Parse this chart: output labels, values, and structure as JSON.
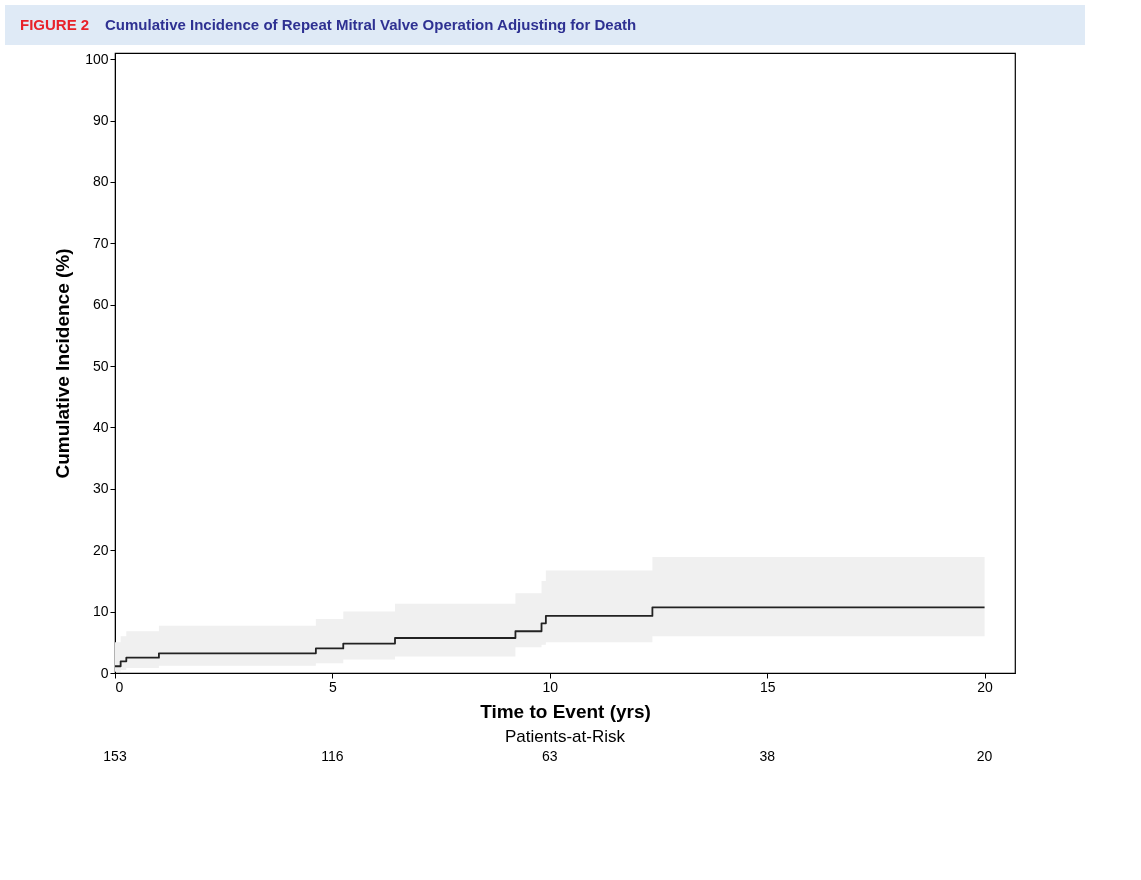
{
  "chart_data": {
    "type": "step",
    "title": "Cumulative Incidence of Repeat Mitral Valve Operation Adjusting for Death",
    "xlabel": "Time to Event (yrs)",
    "ylabel": "Cumulative Incidence (%)",
    "annotations": [
      "FIGURE 2",
      "Patients-at-Risk",
      "153",
      "116",
      "63",
      "38",
      "20"
    ],
    "series": [
      {
        "color": "#222222",
        "x": [
          0,
          0.13,
          0.26,
          1.01,
          4.62,
          5.25,
          6.44,
          9.21,
          9.81,
          9.91,
          12.36,
          20
        ],
        "values": [
          1.1,
          1.9,
          2.5,
          3.2,
          4.0,
          4.8,
          5.7,
          6.8,
          8.1,
          9.3,
          10.7,
          10.7
        ],
        "lower": [
          0.2,
          0.5,
          0.8,
          1.2,
          1.6,
          2.2,
          2.7,
          4.2,
          4.6,
          5.0,
          6.0,
          6.0
        ],
        "upper": [
          5.0,
          6.0,
          6.8,
          7.7,
          8.8,
          10.0,
          11.3,
          13.0,
          15.0,
          16.7,
          18.9,
          18.9
        ]
      }
    ],
    "xlim": [
      0,
      20.7
    ],
    "xticks": [
      0,
      5,
      10,
      15,
      20
    ],
    "ylim": [
      0,
      101
    ],
    "yticks": [
      0,
      10,
      20,
      30,
      40,
      50,
      60,
      70,
      80,
      90,
      100
    ],
    "grid": false,
    "line_style": "solid",
    "marker": "none"
  }
}
